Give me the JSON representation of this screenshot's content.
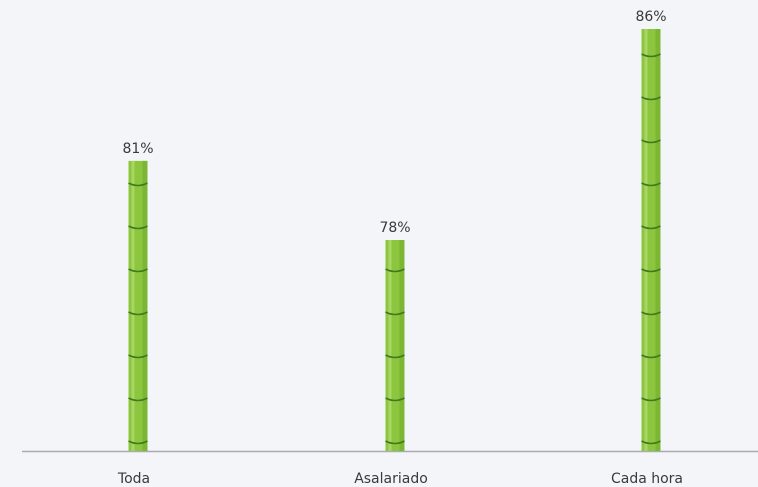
{
  "chart_data": {
    "type": "bar",
    "categories": [
      "Toda",
      "Asalariado",
      "Cada hora"
    ],
    "values": [
      81,
      78,
      86
    ],
    "value_labels": [
      "81%",
      "78%",
      "86%"
    ],
    "color": "#8cc63f",
    "ylim": [
      70,
      86
    ]
  }
}
